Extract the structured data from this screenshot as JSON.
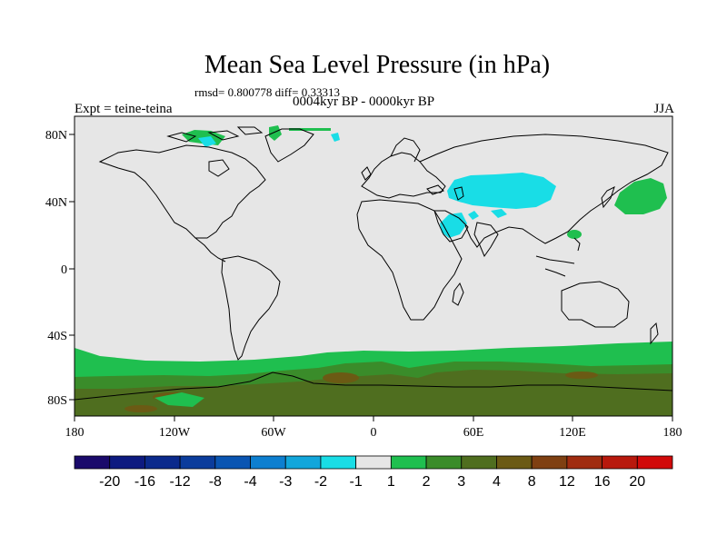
{
  "title": "Mean Sea Level Pressure (in hPa)",
  "stats": "rmsd= 0.800778 diff= 0.33313",
  "experiment": "Expt = teine-teina",
  "period": "0004kyr BP - 0000kyr BP",
  "season": "JJA",
  "axes": {
    "lat_ticks": [
      "80N",
      "40N",
      "0",
      "40S",
      "80S"
    ],
    "lon_ticks": [
      "180",
      "120W",
      "60W",
      "0",
      "60E",
      "120E",
      "180"
    ]
  },
  "colorbar": {
    "labels": [
      "-20",
      "-16",
      "-12",
      "-8",
      "-4",
      "-3",
      "-2",
      "-1",
      "1",
      "2",
      "3",
      "4",
      "8",
      "12",
      "16",
      "20"
    ],
    "colors": [
      "#1a0a6b",
      "#0d1a80",
      "#0b2a8c",
      "#0b3c9c",
      "#0a55b2",
      "#0d7fd0",
      "#12a6db",
      "#19dde6",
      "#e6e6e6",
      "#1fbf4f",
      "#3a8c2a",
      "#4f6e1f",
      "#6b5a14",
      "#7f4012",
      "#a02c10",
      "#b8190d",
      "#d10a0a"
    ]
  },
  "colors": {
    "land_background": "#e6e6e6",
    "neg_cyan": "#19dde6",
    "pos_green": "#1fbf4f",
    "pos_darkgreen": "#3a8c2a",
    "pos_olive": "#4f6e1f",
    "pos_brown": "#6b5a14"
  }
}
